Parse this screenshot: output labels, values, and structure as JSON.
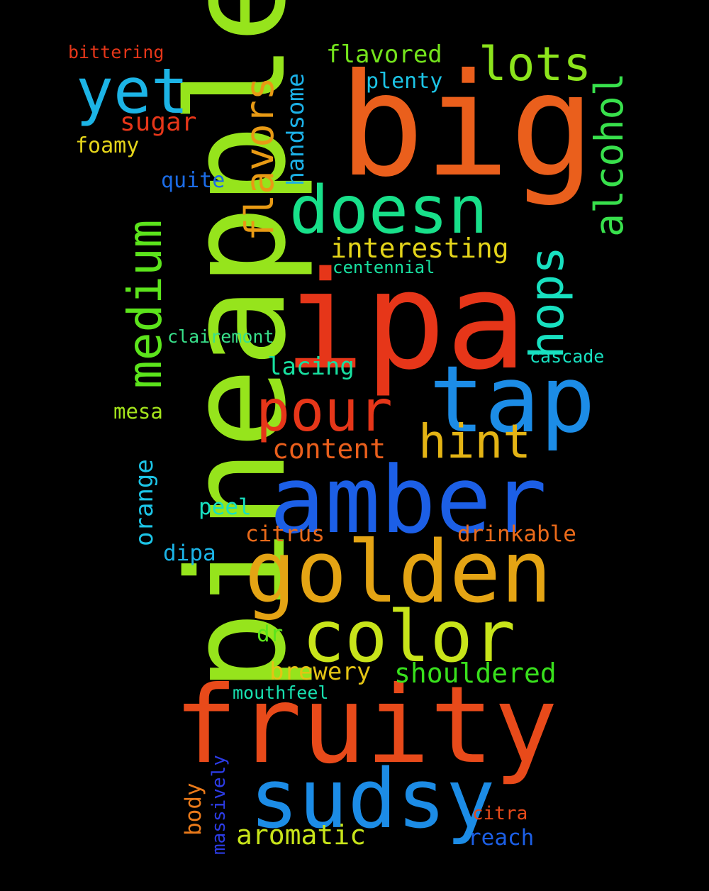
{
  "words": [
    {
      "text": "pineapple",
      "color": "#96e41c"
    },
    {
      "text": "ipa",
      "color": "#e63619"
    },
    {
      "text": "big",
      "color": "#ea5f1c"
    },
    {
      "text": "fruity",
      "color": "#e84a1a"
    },
    {
      "text": "amber",
      "color": "#1c5fe6"
    },
    {
      "text": "golden",
      "color": "#e4a414"
    },
    {
      "text": "tap",
      "color": "#1c8ce6"
    },
    {
      "text": "sudsy",
      "color": "#1c8ce6"
    },
    {
      "text": "color",
      "color": "#c8e41a"
    },
    {
      "text": "doesn",
      "color": "#18e08a"
    },
    {
      "text": "pour",
      "color": "#e63619"
    },
    {
      "text": "medium",
      "color": "#5ce41c"
    },
    {
      "text": "yet",
      "color": "#1cb4e6"
    },
    {
      "text": "lots",
      "color": "#8ce41c"
    },
    {
      "text": "hops",
      "color": "#18e0c0"
    },
    {
      "text": "alcohol",
      "color": "#38e04c"
    },
    {
      "text": "flavors",
      "color": "#e89a14"
    },
    {
      "text": "hint",
      "color": "#e4b414"
    },
    {
      "text": "interesting",
      "color": "#e4d41a"
    },
    {
      "text": "content",
      "color": "#ea5f1c"
    },
    {
      "text": "shouldered",
      "color": "#38e01c"
    },
    {
      "text": "aromatic",
      "color": "#c8e41a"
    },
    {
      "text": "brewery",
      "color": "#e4c414"
    },
    {
      "text": "lacing",
      "color": "#18e0a0"
    },
    {
      "text": "flavored",
      "color": "#74e41c"
    },
    {
      "text": "orange",
      "color": "#1cc4e6"
    },
    {
      "text": "handsome",
      "color": "#1cb0e6"
    },
    {
      "text": "drinkable",
      "color": "#ea6a1a"
    },
    {
      "text": "citrus",
      "color": "#ea6a1a"
    },
    {
      "text": "sugar",
      "color": "#e63619"
    },
    {
      "text": "plenty",
      "color": "#1cc4e6"
    },
    {
      "text": "foamy",
      "color": "#e4d41a"
    },
    {
      "text": "quite",
      "color": "#1c6ce6"
    },
    {
      "text": "peel",
      "color": "#18e0c0"
    },
    {
      "text": "mesa",
      "color": "#a4e41c"
    },
    {
      "text": "dipa",
      "color": "#1cb4e6"
    },
    {
      "text": "reach",
      "color": "#1c5fe6"
    },
    {
      "text": "cascade",
      "color": "#18e0c0"
    },
    {
      "text": "clairemont",
      "color": "#38e08a"
    },
    {
      "text": "centennial",
      "color": "#18e0a0"
    },
    {
      "text": "mouthfeel",
      "color": "#18e0b0"
    },
    {
      "text": "bittering",
      "color": "#e63619"
    },
    {
      "text": "dr",
      "color": "#5ce41c"
    },
    {
      "text": "body",
      "color": "#ea7a1a"
    },
    {
      "text": "massively",
      "color": "#2c3ce6"
    },
    {
      "text": "citra",
      "color": "#e84a1a"
    }
  ]
}
